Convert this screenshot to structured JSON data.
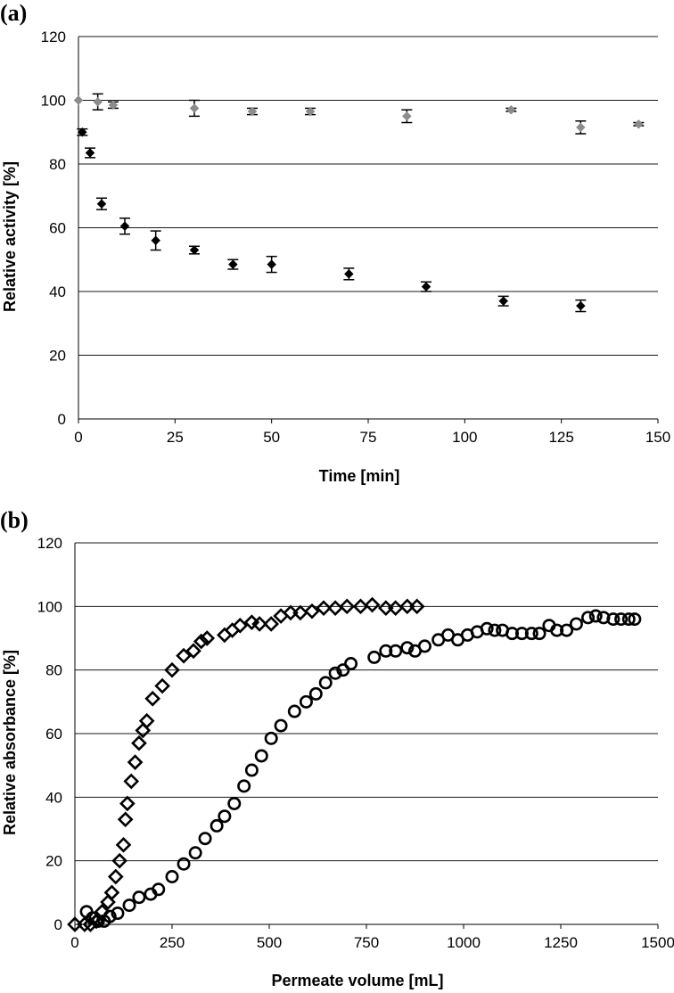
{
  "chart_data": [
    {
      "type": "scatter",
      "panel_label": "(a)",
      "xlabel": "Time [min]",
      "ylabel": "Relative activity [%]",
      "xlim": [
        0,
        150
      ],
      "ylim": [
        0,
        120
      ],
      "xticks": [
        "0",
        "25",
        "50",
        "75",
        "100",
        "125",
        "150"
      ],
      "yticks": [
        "0",
        "20",
        "40",
        "60",
        "80",
        "100",
        "120"
      ],
      "grid": true,
      "series": [
        {
          "name": "grey series",
          "color": "#8c8c8c",
          "marker": "diamond",
          "points": [
            {
              "x": 0,
              "y": 100,
              "err": 0
            },
            {
              "x": 5,
              "y": 99.5,
              "err": 2.5
            },
            {
              "x": 9,
              "y": 98.5,
              "err": 1
            },
            {
              "x": 30,
              "y": 97.5,
              "err": 2.5
            },
            {
              "x": 45,
              "y": 96.5,
              "err": 1
            },
            {
              "x": 60,
              "y": 96.5,
              "err": 1
            },
            {
              "x": 85,
              "y": 95,
              "err": 2
            },
            {
              "x": 112,
              "y": 97,
              "err": 0.5
            },
            {
              "x": 130,
              "y": 91.5,
              "err": 2
            },
            {
              "x": 145,
              "y": 92.5,
              "err": 0.5
            }
          ]
        },
        {
          "name": "black series",
          "color": "#000000",
          "marker": "diamond",
          "points": [
            {
              "x": 1,
              "y": 90,
              "err": 1
            },
            {
              "x": 3,
              "y": 83.5,
              "err": 1.5
            },
            {
              "x": 6,
              "y": 67.5,
              "err": 1.8
            },
            {
              "x": 12,
              "y": 60.5,
              "err": 2.5
            },
            {
              "x": 20,
              "y": 56,
              "err": 3
            },
            {
              "x": 30,
              "y": 53,
              "err": 1.2
            },
            {
              "x": 40,
              "y": 48.5,
              "err": 1.5
            },
            {
              "x": 50,
              "y": 48.5,
              "err": 2.5
            },
            {
              "x": 70,
              "y": 45.5,
              "err": 1.8
            },
            {
              "x": 90,
              "y": 41.5,
              "err": 1.5
            },
            {
              "x": 110,
              "y": 37,
              "err": 1.5
            },
            {
              "x": 130,
              "y": 35.5,
              "err": 1.8
            }
          ]
        }
      ]
    },
    {
      "type": "scatter",
      "panel_label": "(b)",
      "xlabel": "Permeate volume [mL]",
      "ylabel": "Relative absorbance [%]",
      "xlim": [
        0,
        1500
      ],
      "ylim": [
        0,
        120
      ],
      "xticks": [
        "0",
        "250",
        "500",
        "750",
        "1000",
        "1250",
        "1500"
      ],
      "yticks": [
        "0",
        "20",
        "40",
        "60",
        "80",
        "100",
        "120"
      ],
      "grid": true,
      "series": [
        {
          "name": "diamonds",
          "marker": "open-diamond",
          "x": [
            0,
            25,
            40,
            55,
            70,
            85,
            95,
            105,
            115,
            125,
            130,
            135,
            145,
            155,
            165,
            175,
            185,
            200,
            225,
            250,
            280,
            305,
            325,
            340,
            385,
            405,
            425,
            455,
            475,
            505,
            530,
            555,
            580,
            610,
            640,
            670,
            700,
            735,
            765,
            800,
            825,
            855,
            880
          ],
          "y": [
            0,
            0,
            0,
            1,
            4,
            7,
            10,
            15,
            20,
            25,
            33,
            38,
            45,
            51,
            57,
            61,
            64,
            71,
            75,
            80,
            84.5,
            86,
            89,
            90,
            91,
            92.5,
            94,
            95,
            94.5,
            94.5,
            97,
            98,
            98,
            98.5,
            99.5,
            99.5,
            100,
            100,
            100.5,
            99.5,
            99.5,
            100,
            100
          ]
        },
        {
          "name": "circles",
          "marker": "open-circle",
          "x": [
            30,
            45,
            60,
            75,
            90,
            110,
            140,
            165,
            195,
            215,
            250,
            280,
            310,
            335,
            365,
            385,
            410,
            435,
            455,
            480,
            505,
            530,
            565,
            595,
            620,
            645,
            670,
            690,
            710,
            770,
            800,
            825,
            855,
            875,
            900,
            935,
            960,
            985,
            1010,
            1035,
            1060,
            1080,
            1100,
            1125,
            1150,
            1175,
            1195,
            1220,
            1240,
            1265,
            1290,
            1320,
            1340,
            1360,
            1385,
            1405,
            1425,
            1440
          ],
          "y": [
            4,
            2,
            1,
            1,
            2.5,
            3.5,
            6,
            8.5,
            9.5,
            11,
            15,
            19,
            22.5,
            27,
            31,
            34,
            38,
            43.5,
            48.5,
            53,
            58.5,
            62.5,
            67,
            70,
            72.5,
            76,
            79,
            80,
            82,
            84,
            86,
            86,
            87,
            86,
            87.5,
            89.5,
            91,
            89.5,
            91,
            92,
            93,
            92.5,
            92.5,
            91.5,
            91.5,
            91.5,
            91.5,
            94,
            92.5,
            92.5,
            94.5,
            96.5,
            97,
            96.5,
            96,
            96,
            96,
            96
          ]
        }
      ]
    }
  ]
}
